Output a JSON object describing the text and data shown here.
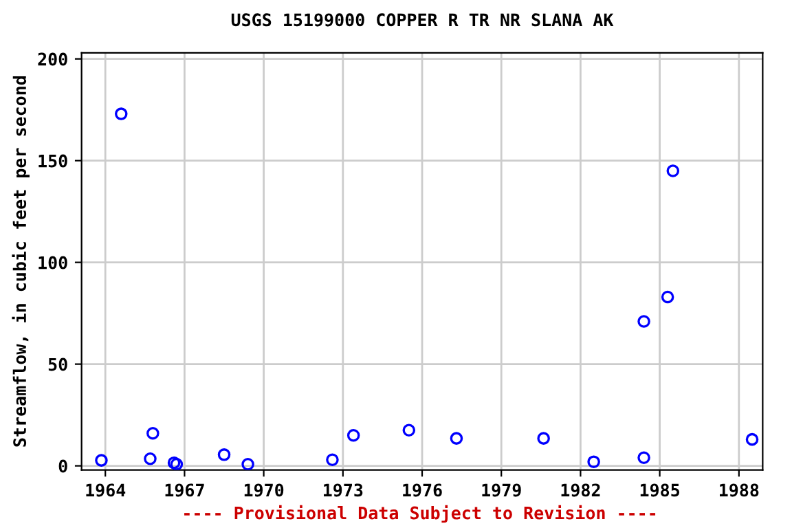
{
  "chart_data": {
    "type": "scatter",
    "title": "USGS 15199000 COPPER R TR NR SLANA AK",
    "ylabel": "Streamflow, in cubic feet per second",
    "x": [
      1963.85,
      1964.6,
      1965.8,
      1965.7,
      1966.6,
      1966.7,
      1968.5,
      1969.4,
      1972.6,
      1973.4,
      1975.5,
      1977.3,
      1980.6,
      1982.5,
      1984.4,
      1984.4,
      1985.3,
      1985.5,
      1988.5
    ],
    "series": [
      {
        "color": "#0000ff",
        "values": [
          2.7,
          173,
          16,
          3.5,
          1.5,
          0.8,
          5.5,
          0.8,
          3,
          15,
          17.5,
          13.5,
          13.5,
          2,
          4,
          71,
          83,
          145,
          13
        ]
      }
    ],
    "xlim": [
      1963.1,
      1988.9
    ],
    "xticks": [
      1964,
      1967,
      1970,
      1973,
      1976,
      1979,
      1982,
      1985,
      1988
    ],
    "ylim": [
      -2,
      203
    ],
    "yticks": [
      0,
      50,
      100,
      150,
      200
    ],
    "grid": true,
    "marker": "circle",
    "annotations": [
      "---- Provisional Data Subject to Revision ----"
    ]
  }
}
